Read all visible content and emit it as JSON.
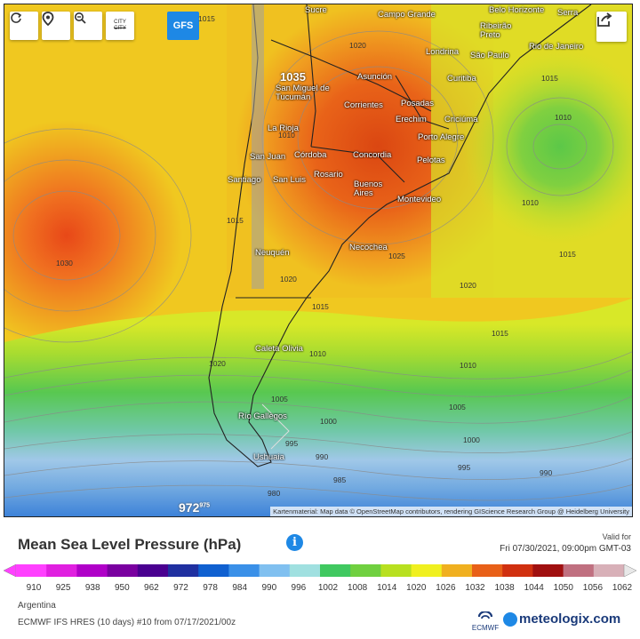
{
  "controls": {
    "refresh_icon": "refresh-icon",
    "location_icon": "location-pin-icon",
    "zoom_icon": "zoom-out-icon",
    "city_label": "CITY",
    "model_button": "GFS",
    "share_icon": "share-icon"
  },
  "map": {
    "attribution": "Kartenmaterial: Map data © OpenStreetMap contributors, rendering GIScience Research Group @ Heidelberg University",
    "center_low_value": "972",
    "center_low_small": "975",
    "cities": [
      "Sucre",
      "Campo Grande",
      "Belo Horizonte",
      "Serra",
      "Ribeirão Preto",
      "Rio de Janeiro",
      "Londrina",
      "São Paulo",
      "Curitiba",
      "San Miguel de Tucumán",
      "Asunción",
      "Corrientes",
      "Posadas",
      "Erechim",
      "Criciúma",
      "La Rioja",
      "Porto Alegre",
      "San Juan",
      "Córdoba",
      "Concordia",
      "Pelotas",
      "Santiago",
      "San Luis",
      "Rosario",
      "Buenos Aires",
      "Montevideo",
      "Neuquén",
      "Necochea",
      "Caleta Olivia",
      "Río Gallegos",
      "Ushuaia"
    ],
    "isobars": [
      "1015",
      "1020",
      "1035",
      "1010",
      "1015",
      "1010",
      "1010",
      "1015",
      "1030",
      "1015",
      "1025",
      "1020",
      "1020",
      "1015",
      "1015",
      "1010",
      "1010",
      "1020",
      "1005",
      "1005",
      "1000",
      "1000",
      "995",
      "995",
      "990",
      "985",
      "990",
      "980"
    ]
  },
  "panel": {
    "title": "Mean Sea Level Pressure (hPa)",
    "info_icon": "info-icon",
    "valid_label": "Valid for",
    "valid_date": "Fri 07/30/2021, 09:00pm GMT-03",
    "legend_values": [
      "910",
      "925",
      "938",
      "950",
      "962",
      "972",
      "978",
      "984",
      "990",
      "996",
      "1002",
      "1008",
      "1014",
      "1020",
      "1026",
      "1032",
      "1038",
      "1044",
      "1050",
      "1056",
      "1062"
    ],
    "legend_colors": [
      "#ff40ff",
      "#e020e0",
      "#b000c8",
      "#7a00a0",
      "#4a0090",
      "#2030a0",
      "#1060d0",
      "#3a90e8",
      "#80c0f0",
      "#a0e0e0",
      "#40c860",
      "#70d040",
      "#b8e020",
      "#f0f020",
      "#f0b020",
      "#e86018",
      "#d03010",
      "#a01010",
      "#c07080",
      "#d8b0b8",
      "#e8e8e8"
    ],
    "region": "Argentina",
    "model_run": "ECMWF IFS HRES (10 days) #10 from 07/17/2021/00z",
    "ecmwf_logo_text": "ECMWF",
    "brand": "meteologix.com"
  }
}
